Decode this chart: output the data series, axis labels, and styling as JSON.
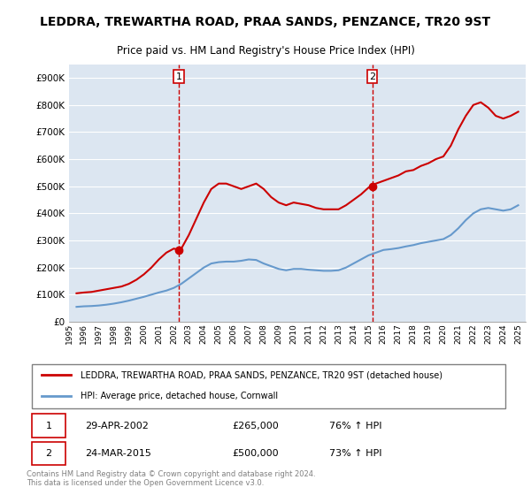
{
  "title": "LEDDRA, TREWARTHA ROAD, PRAA SANDS, PENZANCE, TR20 9ST",
  "subtitle": "Price paid vs. HM Land Registry's House Price Index (HPI)",
  "legend_label_red": "LEDDRA, TREWARTHA ROAD, PRAA SANDS, PENZANCE, TR20 9ST (detached house)",
  "legend_label_blue": "HPI: Average price, detached house, Cornwall",
  "footnote": "Contains HM Land Registry data © Crown copyright and database right 2024.\nThis data is licensed under the Open Government Licence v3.0.",
  "sale1_label": "1",
  "sale1_date": "29-APR-2002",
  "sale1_price": "£265,000",
  "sale1_hpi": "76% ↑ HPI",
  "sale2_label": "2",
  "sale2_date": "24-MAR-2015",
  "sale2_price": "£500,000",
  "sale2_hpi": "73% ↑ HPI",
  "red_color": "#cc0000",
  "blue_color": "#6699cc",
  "background_color": "#dce6f1",
  "ylim": [
    0,
    950000
  ],
  "yticks": [
    0,
    100000,
    200000,
    300000,
    400000,
    500000,
    600000,
    700000,
    800000,
    900000
  ],
  "red_x": [
    1995.5,
    1996.0,
    1996.5,
    1997.0,
    1997.5,
    1998.0,
    1998.5,
    1999.0,
    1999.5,
    2000.0,
    2000.5,
    2001.0,
    2001.5,
    2002.0,
    2002.33,
    2002.5,
    2003.0,
    2003.5,
    2004.0,
    2004.5,
    2005.0,
    2005.5,
    2006.0,
    2006.5,
    2007.0,
    2007.5,
    2008.0,
    2008.5,
    2009.0,
    2009.5,
    2010.0,
    2010.5,
    2011.0,
    2011.5,
    2012.0,
    2012.5,
    2013.0,
    2013.5,
    2014.0,
    2014.5,
    2015.0,
    2015.25,
    2015.5,
    2016.0,
    2016.5,
    2017.0,
    2017.5,
    2018.0,
    2018.5,
    2019.0,
    2019.5,
    2020.0,
    2020.5,
    2021.0,
    2021.5,
    2022.0,
    2022.5,
    2023.0,
    2023.5,
    2024.0,
    2024.5,
    2025.0
  ],
  "red_y": [
    105000,
    108000,
    110000,
    115000,
    120000,
    125000,
    130000,
    140000,
    155000,
    175000,
    200000,
    230000,
    255000,
    270000,
    265000,
    270000,
    320000,
    380000,
    440000,
    490000,
    510000,
    510000,
    500000,
    490000,
    500000,
    510000,
    490000,
    460000,
    440000,
    430000,
    440000,
    435000,
    430000,
    420000,
    415000,
    415000,
    415000,
    430000,
    450000,
    470000,
    495000,
    500000,
    510000,
    520000,
    530000,
    540000,
    555000,
    560000,
    575000,
    585000,
    600000,
    610000,
    650000,
    710000,
    760000,
    800000,
    810000,
    790000,
    760000,
    750000,
    760000,
    775000
  ],
  "blue_x": [
    1995.5,
    1996.0,
    1996.5,
    1997.0,
    1997.5,
    1998.0,
    1998.5,
    1999.0,
    1999.5,
    2000.0,
    2000.5,
    2001.0,
    2001.5,
    2002.0,
    2002.5,
    2003.0,
    2003.5,
    2004.0,
    2004.5,
    2005.0,
    2005.5,
    2006.0,
    2006.5,
    2007.0,
    2007.5,
    2008.0,
    2008.5,
    2009.0,
    2009.5,
    2010.0,
    2010.5,
    2011.0,
    2011.5,
    2012.0,
    2012.5,
    2013.0,
    2013.5,
    2014.0,
    2014.5,
    2015.0,
    2015.5,
    2016.0,
    2016.5,
    2017.0,
    2017.5,
    2018.0,
    2018.5,
    2019.0,
    2019.5,
    2020.0,
    2020.5,
    2021.0,
    2021.5,
    2022.0,
    2022.5,
    2023.0,
    2023.5,
    2024.0,
    2024.5,
    2025.0
  ],
  "blue_y": [
    55000,
    57000,
    58000,
    60000,
    63000,
    67000,
    72000,
    78000,
    85000,
    92000,
    100000,
    108000,
    115000,
    125000,
    140000,
    160000,
    180000,
    200000,
    215000,
    220000,
    222000,
    222000,
    225000,
    230000,
    228000,
    215000,
    205000,
    195000,
    190000,
    195000,
    195000,
    192000,
    190000,
    188000,
    188000,
    190000,
    200000,
    215000,
    230000,
    245000,
    255000,
    265000,
    268000,
    272000,
    278000,
    283000,
    290000,
    295000,
    300000,
    305000,
    320000,
    345000,
    375000,
    400000,
    415000,
    420000,
    415000,
    410000,
    415000,
    430000
  ],
  "marker1_x": 2002.33,
  "marker1_y": 265000,
  "marker2_x": 2015.25,
  "marker2_y": 500000,
  "vline1_x": 2002.33,
  "vline2_x": 2015.25,
  "xlim": [
    1995.0,
    2025.5
  ],
  "xtick_years": [
    1995,
    1996,
    1997,
    1998,
    1999,
    2000,
    2001,
    2002,
    2003,
    2004,
    2005,
    2006,
    2007,
    2008,
    2009,
    2010,
    2011,
    2012,
    2013,
    2014,
    2015,
    2016,
    2017,
    2018,
    2019,
    2020,
    2021,
    2022,
    2023,
    2024,
    2025
  ]
}
